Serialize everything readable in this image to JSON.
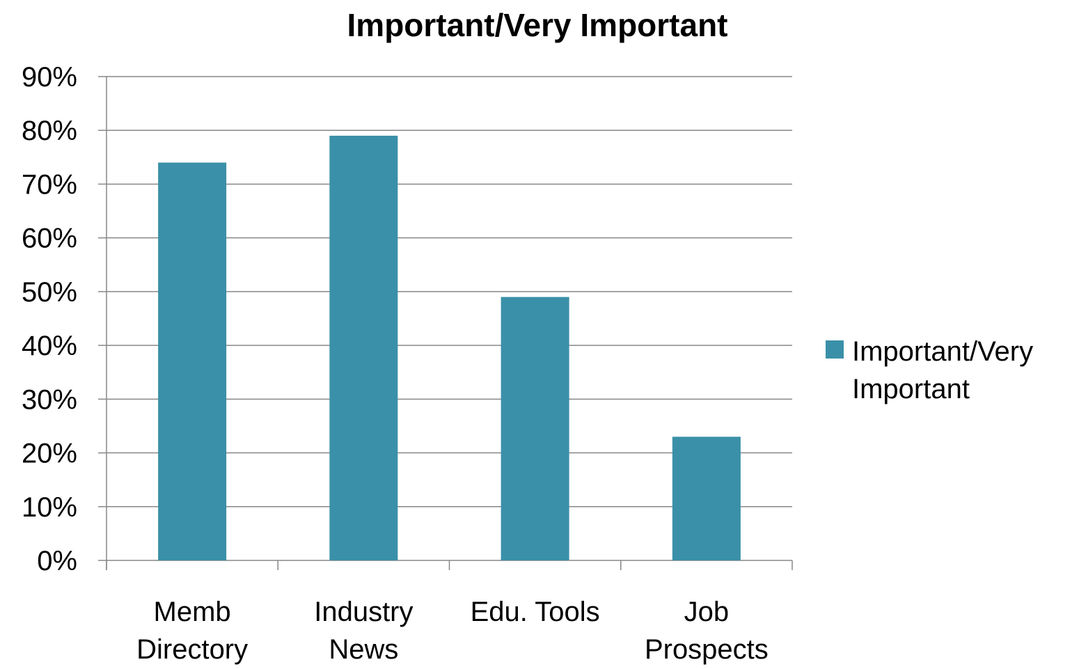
{
  "chart_data": {
    "type": "bar",
    "title": "Important/Very Important",
    "xlabel": "",
    "ylabel": "",
    "categories": [
      [
        "Memb",
        "Directory"
      ],
      [
        "Industry",
        "News"
      ],
      [
        "Edu. Tools"
      ],
      [
        "Job",
        "Prospects"
      ]
    ],
    "series": [
      {
        "name": "Important/Very Important",
        "name_lines": [
          "Important/Very",
          "Important"
        ],
        "values": [
          74,
          79,
          49,
          23
        ],
        "color": "#3a90a8"
      }
    ],
    "ylim": [
      0,
      90
    ],
    "yticks": [
      "0%",
      "10%",
      "20%",
      "30%",
      "40%",
      "50%",
      "60%",
      "70%",
      "80%",
      "90%"
    ],
    "ytick_values": [
      0,
      10,
      20,
      30,
      40,
      50,
      60,
      70,
      80,
      90
    ],
    "y_unit": "%",
    "grid": true,
    "gridline_color": "#878787",
    "axis_color": "#878787",
    "legend_position": "right"
  }
}
